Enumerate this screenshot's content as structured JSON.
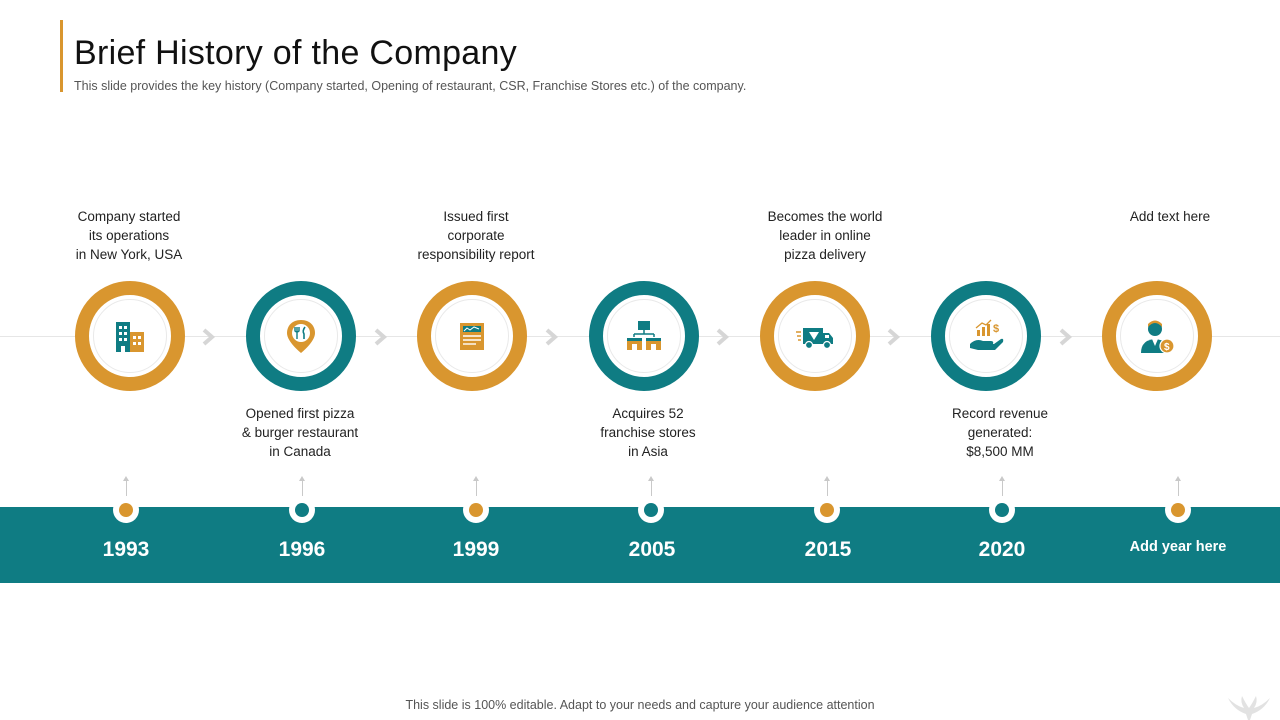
{
  "header": {
    "title": "Brief History of the Company",
    "subtitle": "This slide provides the key history (Company started, Opening of restaurant, CSR, Franchise Stores etc.) of the company."
  },
  "colors": {
    "accent": "#D9962F",
    "brand": "#0F7C83"
  },
  "timeline": {
    "events": [
      {
        "year": "1993",
        "text": "Company started\nits operations\nin New York, USA",
        "icon": "building-icon",
        "ring_color": "orange"
      },
      {
        "year": "1996",
        "text": "Opened first pizza\n& burger restaurant\nin Canada",
        "icon": "location-pin-icon",
        "ring_color": "teal"
      },
      {
        "year": "1999",
        "text": "Issued first\ncorporate\nresponsibility  report",
        "icon": "report-icon",
        "ring_color": "orange"
      },
      {
        "year": "2005",
        "text": "Acquires 52\nfranchise stores\nin Asia",
        "icon": "stores-icon",
        "ring_color": "teal"
      },
      {
        "year": "2015",
        "text": "Becomes the world\nleader in online\npizza delivery",
        "icon": "delivery-truck-icon",
        "ring_color": "orange"
      },
      {
        "year": "2020",
        "text": "Record revenue\ngenerated:\n$8,500 MM",
        "icon": "revenue-hand-icon",
        "ring_color": "teal"
      },
      {
        "year": "Add year here",
        "text": "Add text here",
        "icon": "businessman-icon",
        "ring_color": "orange"
      }
    ]
  },
  "footer": {
    "note": "This slide is 100% editable. Adapt to your needs and capture your audience attention"
  }
}
